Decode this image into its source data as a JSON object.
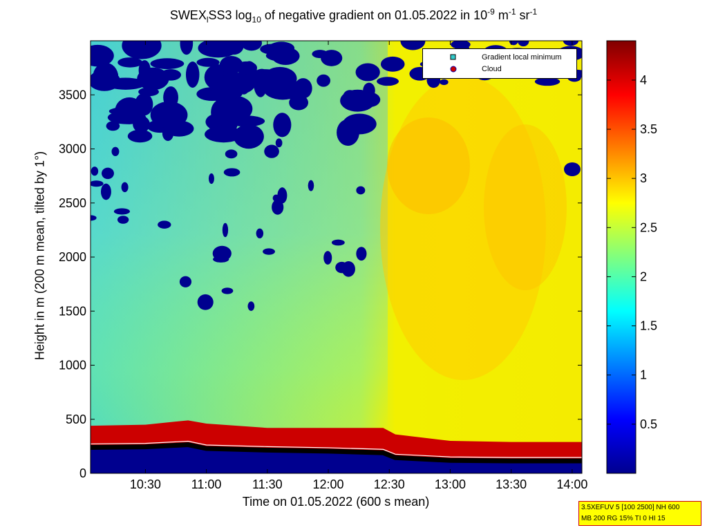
{
  "chart_data": {
    "type": "heatmap",
    "title": {
      "pre": "SWEX",
      "sub1": "l",
      "mid": "SS3 log",
      "sub2": "10",
      "post": " of negative gradient on 01.05.2022 in 10",
      "sup1": "-9",
      "post2": " m",
      "sup2": "-1",
      "post3": " sr",
      "sup3": "-1"
    },
    "xlabel": "Time on 01.05.2022 (600 s mean)",
    "ylabel": "Height in m (200 m mean, tilted by 1°)",
    "x_ticks": [
      "10:30",
      "11:00",
      "11:30",
      "12:00",
      "12:30",
      "13:00",
      "13:30",
      "14:00"
    ],
    "x_tick_hours": [
      10.5,
      11.0,
      11.5,
      12.0,
      12.5,
      13.0,
      13.5,
      14.0
    ],
    "xlim_hours": [
      10.05,
      14.08
    ],
    "y_ticks": [
      0,
      500,
      1000,
      1500,
      2000,
      2500,
      3000,
      3500
    ],
    "ylim": [
      0,
      4000
    ],
    "colorbar": {
      "ticks": [
        0.5,
        1,
        1.5,
        2,
        2.5,
        3,
        3.5,
        4
      ],
      "tick_labels": [
        "0.5",
        "1",
        "1.5",
        "2",
        "2.5",
        "3",
        "3.5",
        "4"
      ],
      "range": [
        0,
        4.4
      ],
      "colormap": "jet"
    },
    "legend": {
      "position": "top-right",
      "entries": [
        {
          "label": "Gradient local minimum",
          "marker": "square",
          "color": "#33cccc"
        },
        {
          "label": "Cloud",
          "marker": "circle",
          "color": "#cc0000"
        }
      ]
    },
    "gradient_minimum_height_m": [
      {
        "t": 10.05,
        "h": 240
      },
      {
        "t": 10.5,
        "h": 245
      },
      {
        "t": 10.85,
        "h": 265
      },
      {
        "t": 11.0,
        "h": 230
      },
      {
        "t": 11.5,
        "h": 215
      },
      {
        "t": 12.0,
        "h": 205
      },
      {
        "t": 12.45,
        "h": 190
      },
      {
        "t": 12.55,
        "h": 145
      },
      {
        "t": 13.0,
        "h": 120
      },
      {
        "t": 13.5,
        "h": 115
      },
      {
        "t": 14.08,
        "h": 115
      }
    ],
    "boundary_layer_top_m": [
      {
        "t": 10.05,
        "h": 440
      },
      {
        "t": 10.5,
        "h": 450
      },
      {
        "t": 10.85,
        "h": 490
      },
      {
        "t": 11.0,
        "h": 460
      },
      {
        "t": 11.5,
        "h": 420
      },
      {
        "t": 12.0,
        "h": 420
      },
      {
        "t": 12.45,
        "h": 420
      },
      {
        "t": 12.55,
        "h": 360
      },
      {
        "t": 13.0,
        "h": 300
      },
      {
        "t": 13.5,
        "h": 290
      },
      {
        "t": 14.08,
        "h": 290
      }
    ]
  },
  "note": {
    "line1": "3.5XEFUV 5 [100 2500] NH 600",
    "line2": "MB 200 RG 15% TI 0 HI 15"
  }
}
